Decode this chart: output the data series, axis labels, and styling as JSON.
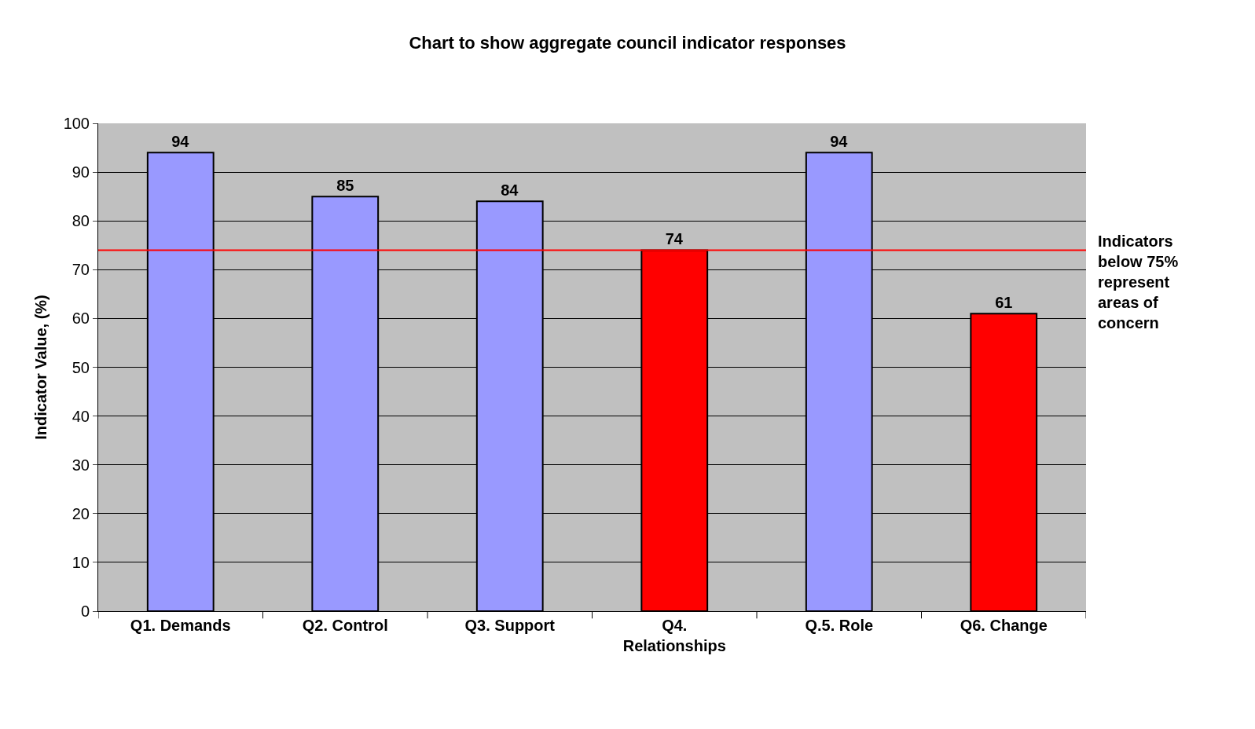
{
  "chart_data": {
    "type": "bar",
    "title": "Chart to show aggregate council indicator responses",
    "ylabel": "Indicator Value, (%)",
    "categories": [
      "Q1. Demands",
      "Q2. Control",
      "Q3. Support",
      "Q4.\nRelationships",
      "Q.5. Role",
      "Q6. Change"
    ],
    "values": [
      94,
      85,
      84,
      74,
      94,
      61
    ],
    "colors": [
      "#9999ff",
      "#9999ff",
      "#9999ff",
      "#ff0000",
      "#9999ff",
      "#ff0000"
    ],
    "ylim": [
      0,
      100
    ],
    "yticks": [
      0,
      10,
      20,
      30,
      40,
      50,
      60,
      70,
      80,
      90,
      100
    ],
    "grid": "y",
    "data_labels": true,
    "ref_lines": [
      {
        "axis": "y",
        "value": 74,
        "label": "Indicators\nbelow 75%\nrepresent\nareas of\nconcern",
        "color": "#ff0000"
      }
    ]
  }
}
